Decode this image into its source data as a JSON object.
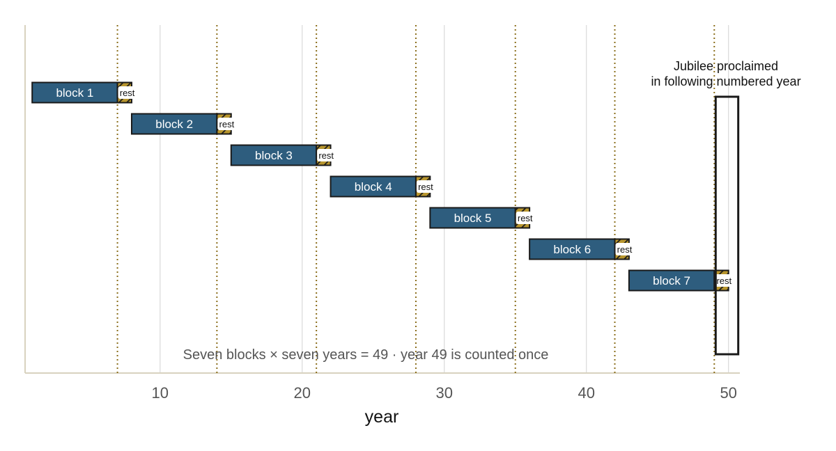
{
  "chart_data": {
    "type": "bar",
    "orientation": "horizontal-timeline",
    "xlabel": "year",
    "xlim": [
      0.5,
      50.8
    ],
    "xticks": [
      10,
      20,
      30,
      40,
      50
    ],
    "grid": "vertical major gridlines at ticks",
    "rest_markers": [
      7,
      14,
      21,
      28,
      35,
      42,
      49
    ],
    "blocks": [
      {
        "label": "block 1",
        "start": 1,
        "work_end": 7,
        "rest_end": 8
      },
      {
        "label": "block 2",
        "start": 8,
        "work_end": 14,
        "rest_end": 15
      },
      {
        "label": "block 3",
        "start": 15,
        "work_end": 21,
        "rest_end": 22
      },
      {
        "label": "block 4",
        "start": 22,
        "work_end": 28,
        "rest_end": 29
      },
      {
        "label": "block 5",
        "start": 29,
        "work_end": 35,
        "rest_end": 36
      },
      {
        "label": "block 6",
        "start": 36,
        "work_end": 42,
        "rest_end": 43
      },
      {
        "label": "block 7",
        "start": 43,
        "work_end": 49,
        "rest_end": 50
      }
    ],
    "rest_label": "rest",
    "jubilee": {
      "x_start": 49,
      "x_end": 50,
      "label_lines": [
        "Jubilee proclaimed",
        "in following numbered year"
      ]
    },
    "note": "Seven blocks × seven years = 49 · year 49 is counted once",
    "colors": {
      "block": "#2e5d7e",
      "rest": "#b8962e",
      "rest_marker": "#8a6d1a",
      "grid": "#d9d9d9",
      "axis": "#d8d2bf",
      "outline": "#1a1a1a"
    }
  }
}
